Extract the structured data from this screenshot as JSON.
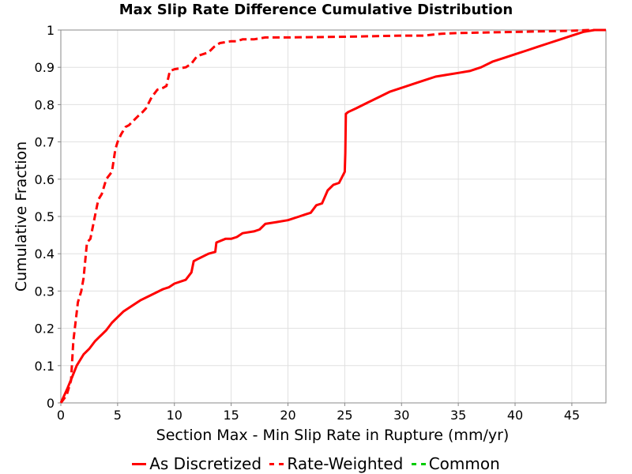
{
  "chart_data": {
    "type": "line",
    "title": "Max Slip Rate Difference Cumulative Distribution",
    "xlabel": "Section Max - Min Slip Rate in Rupture (mm/yr)",
    "ylabel": "Cumulative Fraction",
    "xlim": [
      0,
      48
    ],
    "ylim": [
      0,
      1
    ],
    "x_ticks": [
      0,
      5,
      10,
      15,
      20,
      25,
      30,
      35,
      40,
      45
    ],
    "y_ticks": [
      0,
      0.1,
      0.2,
      0.3,
      0.4,
      0.5,
      0.6,
      0.7,
      0.8,
      0.9,
      1
    ],
    "x_tick_labels": [
      "0",
      "5",
      "10",
      "15",
      "20",
      "25",
      "30",
      "35",
      "40",
      "45"
    ],
    "y_tick_labels": [
      "0",
      "0.1",
      "0.2",
      "0.3",
      "0.4",
      "0.5",
      "0.6",
      "0.7",
      "0.8",
      "0.9",
      "1"
    ],
    "grid": true,
    "legend_position": "bottom",
    "series": [
      {
        "name": "As Discretized",
        "color": "#ff0000",
        "dash": "solid",
        "x": [
          0,
          0.3,
          0.6,
          1.0,
          1.4,
          2.0,
          2.5,
          3.0,
          3.5,
          4.0,
          4.5,
          5.0,
          5.5,
          6.0,
          7.0,
          8.0,
          9.0,
          9.5,
          10.0,
          11.0,
          11.5,
          11.7,
          12.0,
          13.0,
          13.6,
          13.7,
          14.5,
          15.0,
          15.5,
          16.0,
          17.0,
          17.5,
          18.0,
          19.0,
          20.0,
          21.0,
          21.5,
          22.0,
          22.5,
          23.0,
          23.5,
          24.0,
          24.5,
          25.0,
          25.05,
          25.1,
          25.3,
          26.0,
          27.0,
          28.0,
          29.0,
          30.0,
          31.0,
          32.0,
          33.0,
          34.0,
          35.0,
          36.0,
          36.5,
          37.0,
          38.0,
          39.0,
          40.0,
          41.0,
          42.0,
          43.0,
          44.0,
          45.0,
          46.0,
          47.0,
          48.0
        ],
        "y": [
          0,
          0.02,
          0.04,
          0.07,
          0.1,
          0.13,
          0.145,
          0.165,
          0.18,
          0.195,
          0.215,
          0.23,
          0.245,
          0.255,
          0.275,
          0.29,
          0.305,
          0.31,
          0.32,
          0.33,
          0.35,
          0.38,
          0.385,
          0.4,
          0.405,
          0.43,
          0.44,
          0.44,
          0.445,
          0.455,
          0.46,
          0.465,
          0.48,
          0.485,
          0.49,
          0.5,
          0.505,
          0.51,
          0.53,
          0.535,
          0.57,
          0.585,
          0.59,
          0.62,
          0.67,
          0.775,
          0.78,
          0.79,
          0.805,
          0.82,
          0.835,
          0.845,
          0.855,
          0.865,
          0.875,
          0.88,
          0.885,
          0.89,
          0.895,
          0.9,
          0.915,
          0.925,
          0.935,
          0.945,
          0.955,
          0.965,
          0.975,
          0.985,
          0.995,
          1.0,
          1.0
        ]
      },
      {
        "name": "Rate-Weighted",
        "color": "#ff0000",
        "dash": "dashed",
        "x": [
          0,
          0.5,
          0.9,
          1.1,
          1.5,
          1.8,
          2.0,
          2.3,
          2.6,
          3.0,
          3.3,
          3.6,
          4.0,
          4.5,
          4.8,
          5.0,
          5.3,
          5.7,
          6.0,
          6.5,
          7.0,
          7.2,
          7.5,
          8.0,
          8.5,
          9.0,
          9.3,
          9.6,
          10.0,
          11.0,
          11.5,
          12.0,
          13.0,
          13.5,
          14.0,
          15.0,
          15.5,
          16.0,
          17.0,
          18.0,
          20.0,
          25.0,
          30.0,
          32.0,
          33.5,
          35.0,
          40.0,
          45.0,
          46.5,
          48.0
        ],
        "y": [
          0,
          0.02,
          0.06,
          0.165,
          0.27,
          0.3,
          0.335,
          0.43,
          0.44,
          0.5,
          0.545,
          0.56,
          0.6,
          0.62,
          0.68,
          0.7,
          0.72,
          0.74,
          0.745,
          0.76,
          0.775,
          0.78,
          0.79,
          0.82,
          0.84,
          0.845,
          0.85,
          0.89,
          0.895,
          0.9,
          0.91,
          0.93,
          0.94,
          0.955,
          0.965,
          0.97,
          0.97,
          0.975,
          0.975,
          0.98,
          0.98,
          0.982,
          0.985,
          0.985,
          0.99,
          0.992,
          0.995,
          0.998,
          1.0,
          1.0
        ]
      },
      {
        "name": "Common",
        "color": "#00cc00",
        "dash": "dashed",
        "x": [],
        "y": []
      }
    ]
  }
}
